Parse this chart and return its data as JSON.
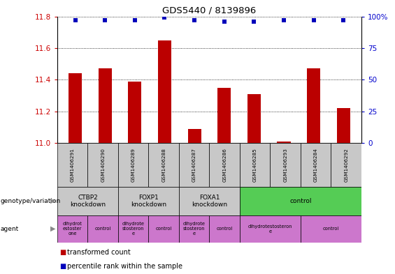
{
  "title": "GDS5440 / 8139896",
  "samples": [
    "GSM1406291",
    "GSM1406290",
    "GSM1406289",
    "GSM1406288",
    "GSM1406287",
    "GSM1406286",
    "GSM1406285",
    "GSM1406293",
    "GSM1406284",
    "GSM1406292"
  ],
  "transformed_counts": [
    11.44,
    11.47,
    11.39,
    11.65,
    11.09,
    11.35,
    11.31,
    11.01,
    11.47,
    11.22
  ],
  "percentile_ranks": [
    97,
    97,
    97,
    99,
    97,
    96,
    96,
    97,
    97,
    97
  ],
  "ylim_left": [
    11.0,
    11.8
  ],
  "ylim_right": [
    0,
    100
  ],
  "yticks_left": [
    11.0,
    11.2,
    11.4,
    11.6,
    11.8
  ],
  "yticks_right": [
    0,
    25,
    50,
    75,
    100
  ],
  "bar_color": "#bb0000",
  "dot_color": "#0000bb",
  "grid_color": "#000000",
  "sample_box_color": "#c8c8c8",
  "genotype_groups": [
    {
      "label": "CTBP2\nknockdown",
      "start": 0,
      "end": 2,
      "color": "#c8c8c8"
    },
    {
      "label": "FOXP1\nknockdown",
      "start": 2,
      "end": 4,
      "color": "#c8c8c8"
    },
    {
      "label": "FOXA1\nknockdown",
      "start": 4,
      "end": 6,
      "color": "#c8c8c8"
    },
    {
      "label": "control",
      "start": 6,
      "end": 10,
      "color": "#55cc55"
    }
  ],
  "agent_groups": [
    {
      "label": "dihydrot\nestoster\none",
      "start": 0,
      "end": 1,
      "color": "#cc77cc"
    },
    {
      "label": "control",
      "start": 1,
      "end": 2,
      "color": "#cc77cc"
    },
    {
      "label": "dihydrote\nstosteron\ne",
      "start": 2,
      "end": 3,
      "color": "#cc77cc"
    },
    {
      "label": "control",
      "start": 3,
      "end": 4,
      "color": "#cc77cc"
    },
    {
      "label": "dihydrote\nstosteron\ne",
      "start": 4,
      "end": 5,
      "color": "#cc77cc"
    },
    {
      "label": "control",
      "start": 5,
      "end": 6,
      "color": "#cc77cc"
    },
    {
      "label": "dihydrotestosteron\ne",
      "start": 6,
      "end": 8,
      "color": "#cc77cc"
    },
    {
      "label": "control",
      "start": 8,
      "end": 10,
      "color": "#cc77cc"
    }
  ],
  "left_label_color": "#cc0000",
  "right_label_color": "#0000cc",
  "bar_width": 0.45,
  "dot_size": 22
}
